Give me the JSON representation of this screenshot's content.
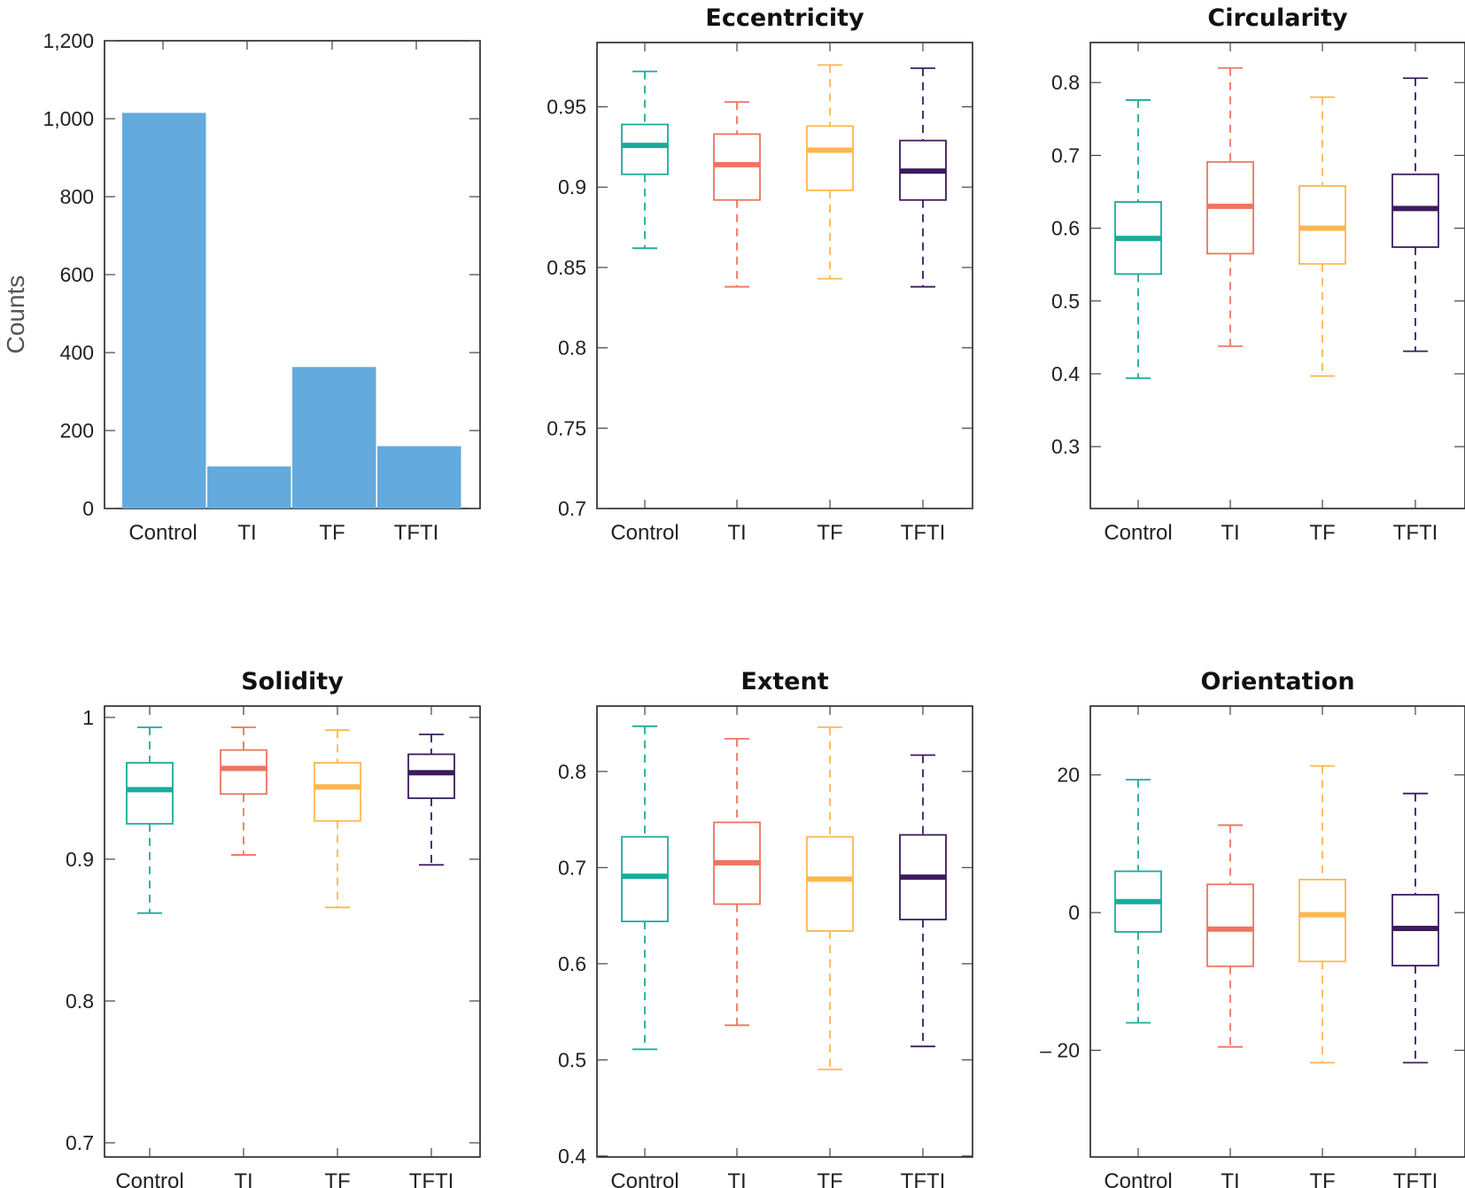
{
  "colors": {
    "Control": "#1aab9b",
    "TI": "#ee7560",
    "TF": "#fdb74e",
    "TFTI": "#3c1b5e",
    "bar": "#64aadc"
  },
  "chart_data": [
    {
      "type": "bar",
      "title": "",
      "categories": [
        "Control",
        "TI",
        "TF",
        "TFTI"
      ],
      "values": [
        1015,
        108,
        363,
        160
      ],
      "ylabel": "Counts",
      "xlabel": "",
      "ylim": [
        0,
        1200
      ],
      "yticks": [
        0,
        200,
        400,
        600,
        800,
        1000,
        1200
      ],
      "ytick_labels": [
        "0",
        "200",
        "400",
        "600",
        "800",
        "1,000",
        "1,200"
      ],
      "grid": false
    },
    {
      "type": "box",
      "title": "Eccentricity",
      "categories": [
        "Control",
        "TI",
        "TF",
        "TFTI"
      ],
      "ylim": [
        0.7,
        0.99
      ],
      "yticks": [
        0.7,
        0.75,
        0.8,
        0.85,
        0.9,
        0.95
      ],
      "ytick_labels": [
        "0.7",
        "0.75",
        "0.8",
        "0.85",
        "0.9",
        "0.95"
      ],
      "boxes": [
        {
          "name": "Control",
          "min": 0.862,
          "q1": 0.908,
          "median": 0.926,
          "q3": 0.939,
          "max": 0.972
        },
        {
          "name": "TI",
          "min": 0.838,
          "q1": 0.892,
          "median": 0.914,
          "q3": 0.933,
          "max": 0.953
        },
        {
          "name": "TF",
          "min": 0.843,
          "q1": 0.898,
          "median": 0.923,
          "q3": 0.938,
          "max": 0.976
        },
        {
          "name": "TFTI",
          "min": 0.838,
          "q1": 0.892,
          "median": 0.91,
          "q3": 0.929,
          "max": 0.974
        }
      ]
    },
    {
      "type": "box",
      "title": "Circularity",
      "categories": [
        "Control",
        "TI",
        "TF",
        "TFTI"
      ],
      "ylim": [
        0.215,
        0.855
      ],
      "yticks": [
        0.3,
        0.4,
        0.5,
        0.6,
        0.7,
        0.8
      ],
      "ytick_labels": [
        "0.3",
        "0.4",
        "0.5",
        "0.6",
        "0.7",
        "0.8"
      ],
      "boxes": [
        {
          "name": "Control",
          "min": 0.394,
          "q1": 0.537,
          "median": 0.586,
          "q3": 0.636,
          "max": 0.776
        },
        {
          "name": "TI",
          "min": 0.438,
          "q1": 0.565,
          "median": 0.63,
          "q3": 0.691,
          "max": 0.82
        },
        {
          "name": "TF",
          "min": 0.397,
          "q1": 0.551,
          "median": 0.6,
          "q3": 0.658,
          "max": 0.78
        },
        {
          "name": "TFTI",
          "min": 0.431,
          "q1": 0.574,
          "median": 0.627,
          "q3": 0.674,
          "max": 0.806
        }
      ]
    },
    {
      "type": "box",
      "title": "Solidity",
      "categories": [
        "Control",
        "TI",
        "TF",
        "TFTI"
      ],
      "ylim": [
        0.69,
        1.008
      ],
      "yticks": [
        0.7,
        0.8,
        0.9,
        1
      ],
      "ytick_labels": [
        "0.7",
        "0.8",
        "0.9",
        "1"
      ],
      "boxes": [
        {
          "name": "Control",
          "min": 0.862,
          "q1": 0.925,
          "median": 0.949,
          "q3": 0.968,
          "max": 0.993
        },
        {
          "name": "TI",
          "min": 0.903,
          "q1": 0.946,
          "median": 0.964,
          "q3": 0.977,
          "max": 0.993
        },
        {
          "name": "TF",
          "min": 0.866,
          "q1": 0.927,
          "median": 0.951,
          "q3": 0.968,
          "max": 0.991
        },
        {
          "name": "TFTI",
          "min": 0.896,
          "q1": 0.943,
          "median": 0.961,
          "q3": 0.974,
          "max": 0.988
        }
      ]
    },
    {
      "type": "box",
      "title": "Extent",
      "categories": [
        "Control",
        "TI",
        "TF",
        "TFTI"
      ],
      "ylim": [
        0.399,
        0.868
      ],
      "yticks": [
        0.4,
        0.5,
        0.6,
        0.7,
        0.8
      ],
      "ytick_labels": [
        "0.4",
        "0.5",
        "0.6",
        "0.7",
        "0.8"
      ],
      "boxes": [
        {
          "name": "Control",
          "min": 0.511,
          "q1": 0.644,
          "median": 0.691,
          "q3": 0.732,
          "max": 0.847
        },
        {
          "name": "TI",
          "min": 0.536,
          "q1": 0.662,
          "median": 0.705,
          "q3": 0.747,
          "max": 0.834
        },
        {
          "name": "TF",
          "min": 0.49,
          "q1": 0.634,
          "median": 0.688,
          "q3": 0.732,
          "max": 0.846
        },
        {
          "name": "TFTI",
          "min": 0.514,
          "q1": 0.646,
          "median": 0.69,
          "q3": 0.734,
          "max": 0.817
        }
      ]
    },
    {
      "type": "box",
      "title": "Orientation",
      "categories": [
        "Control",
        "TI",
        "TF",
        "TFTI"
      ],
      "ylim": [
        -35.5,
        30.0
      ],
      "yticks": [
        -20,
        0,
        20
      ],
      "ytick_labels": [
        "– 20",
        "0",
        "20"
      ],
      "boxes": [
        {
          "name": "Control",
          "min": -16.0,
          "q1": -2.8,
          "median": 1.6,
          "q3": 6.0,
          "max": 19.3
        },
        {
          "name": "TI",
          "min": -19.5,
          "q1": -7.8,
          "median": -2.4,
          "q3": 4.1,
          "max": 12.7
        },
        {
          "name": "TF",
          "min": -21.8,
          "q1": -7.1,
          "median": -0.3,
          "q3": 4.8,
          "max": 21.3
        },
        {
          "name": "TFTI",
          "min": -21.8,
          "q1": -7.7,
          "median": -2.3,
          "q3": 2.6,
          "max": 17.3
        }
      ]
    }
  ]
}
